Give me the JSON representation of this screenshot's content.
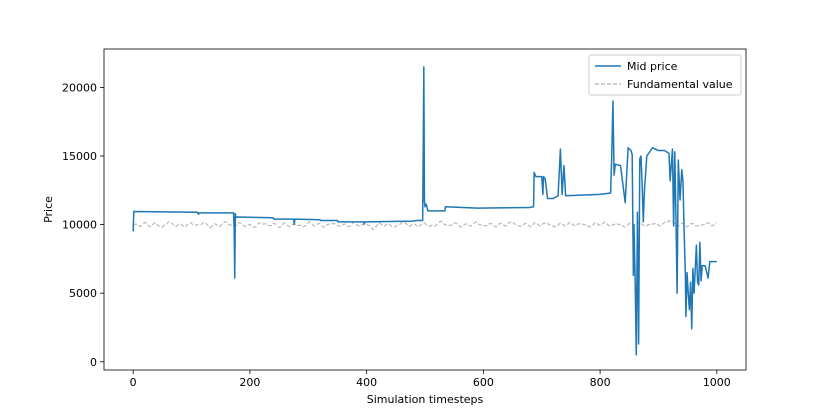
{
  "chart_data": {
    "type": "line",
    "title": "",
    "xlabel": "Simulation timesteps",
    "ylabel": "Price",
    "xlim": [
      -50,
      1050
    ],
    "ylim": [
      -600,
      22800
    ],
    "xticks": [
      0,
      200,
      400,
      600,
      800,
      1000
    ],
    "yticks": [
      0,
      5000,
      10000,
      15000,
      20000
    ],
    "grid": false,
    "legend": "top-right",
    "series": [
      {
        "name": "Mid price",
        "color": "#1f77b4",
        "style": "solid",
        "points": [
          [
            0,
            9500
          ],
          [
            1,
            10950
          ],
          [
            50,
            10930
          ],
          [
            110,
            10900
          ],
          [
            112,
            10750
          ],
          [
            113,
            10850
          ],
          [
            172,
            10850
          ],
          [
            173,
            9700
          ],
          [
            174,
            6100
          ],
          [
            175,
            10800
          ],
          [
            176,
            10500
          ],
          [
            177,
            10550
          ],
          [
            240,
            10500
          ],
          [
            241,
            10400
          ],
          [
            275,
            10400
          ],
          [
            276,
            10000
          ],
          [
            277,
            10400
          ],
          [
            320,
            10350
          ],
          [
            321,
            10300
          ],
          [
            350,
            10300
          ],
          [
            351,
            10200
          ],
          [
            395,
            10200
          ],
          [
            396,
            10050
          ],
          [
            397,
            10200
          ],
          [
            480,
            10250
          ],
          [
            485,
            10300
          ],
          [
            496,
            10300
          ],
          [
            498,
            21500
          ],
          [
            499,
            11700
          ],
          [
            500,
            11300
          ],
          [
            502,
            11500
          ],
          [
            505,
            11000
          ],
          [
            520,
            11000
          ],
          [
            534,
            11000
          ],
          [
            535,
            11300
          ],
          [
            590,
            11200
          ],
          [
            680,
            11250
          ],
          [
            686,
            11300
          ],
          [
            687,
            13800
          ],
          [
            690,
            13500
          ],
          [
            700,
            13500
          ],
          [
            702,
            12200
          ],
          [
            703,
            13500
          ],
          [
            706,
            13300
          ],
          [
            710,
            11900
          ],
          [
            720,
            11900
          ],
          [
            728,
            12100
          ],
          [
            732,
            15500
          ],
          [
            735,
            12200
          ],
          [
            738,
            14300
          ],
          [
            741,
            12100
          ],
          [
            800,
            12200
          ],
          [
            818,
            12300
          ],
          [
            820,
            15000
          ],
          [
            822,
            19000
          ],
          [
            824,
            13600
          ],
          [
            826,
            14400
          ],
          [
            835,
            14300
          ],
          [
            843,
            11600
          ],
          [
            848,
            15600
          ],
          [
            853,
            15400
          ],
          [
            855,
            15100
          ],
          [
            857,
            6300
          ],
          [
            858,
            10000
          ],
          [
            860,
            6100
          ],
          [
            862,
            500
          ],
          [
            864,
            10900
          ],
          [
            866,
            1300
          ],
          [
            868,
            14800
          ],
          [
            870,
            15000
          ],
          [
            872,
            13000
          ],
          [
            874,
            10200
          ],
          [
            876,
            12500
          ],
          [
            878,
            13700
          ],
          [
            880,
            15000
          ],
          [
            890,
            15600
          ],
          [
            900,
            15400
          ],
          [
            910,
            15400
          ],
          [
            918,
            15200
          ],
          [
            920,
            13200
          ],
          [
            924,
            15500
          ],
          [
            926,
            9900
          ],
          [
            928,
            15300
          ],
          [
            930,
            10500
          ],
          [
            932,
            5000
          ],
          [
            934,
            14700
          ],
          [
            937,
            11800
          ],
          [
            940,
            14000
          ],
          [
            942,
            13100
          ],
          [
            944,
            9500
          ],
          [
            946,
            6500
          ],
          [
            947,
            3300
          ],
          [
            949,
            6500
          ],
          [
            951,
            5000
          ],
          [
            953,
            3800
          ],
          [
            955,
            5800
          ],
          [
            957,
            2400
          ],
          [
            959,
            6800
          ],
          [
            961,
            5000
          ],
          [
            963,
            6700
          ],
          [
            965,
            8500
          ],
          [
            967,
            5800
          ],
          [
            969,
            5600
          ],
          [
            971,
            8700
          ],
          [
            973,
            5900
          ],
          [
            975,
            7000
          ],
          [
            980,
            7000
          ],
          [
            985,
            6100
          ],
          [
            988,
            7300
          ],
          [
            1000,
            7300
          ]
        ]
      },
      {
        "name": "Fundamental value",
        "color": "#bdbdbd",
        "style": "dashed",
        "mean": 10000,
        "noise_amplitude": 180,
        "points": [
          [
            0,
            10000
          ],
          [
            10,
            9900
          ],
          [
            20,
            10150
          ],
          [
            30,
            9850
          ],
          [
            40,
            10100
          ],
          [
            50,
            9800
          ],
          [
            60,
            10200
          ],
          [
            70,
            9900
          ],
          [
            80,
            10050
          ],
          [
            90,
            9850
          ],
          [
            100,
            10100
          ],
          [
            110,
            9950
          ],
          [
            120,
            10150
          ],
          [
            130,
            9800
          ],
          [
            140,
            10050
          ],
          [
            150,
            9900
          ],
          [
            160,
            10200
          ],
          [
            170,
            9850
          ],
          [
            180,
            10100
          ],
          [
            190,
            9900
          ],
          [
            200,
            10000
          ],
          [
            210,
            9850
          ],
          [
            220,
            10150
          ],
          [
            230,
            9950
          ],
          [
            240,
            10050
          ],
          [
            250,
            9800
          ],
          [
            260,
            10100
          ],
          [
            270,
            9900
          ],
          [
            280,
            10000
          ],
          [
            290,
            9850
          ],
          [
            300,
            10150
          ],
          [
            310,
            9900
          ],
          [
            320,
            10050
          ],
          [
            330,
            9850
          ],
          [
            340,
            10100
          ],
          [
            350,
            9950
          ],
          [
            360,
            10000
          ],
          [
            370,
            9850
          ],
          [
            380,
            10150
          ],
          [
            390,
            9900
          ],
          [
            400,
            10050
          ],
          [
            410,
            9650
          ],
          [
            420,
            10100
          ],
          [
            430,
            9900
          ],
          [
            440,
            10000
          ],
          [
            450,
            9850
          ],
          [
            460,
            10150
          ],
          [
            470,
            9950
          ],
          [
            480,
            10050
          ],
          [
            490,
            9850
          ],
          [
            500,
            10100
          ],
          [
            510,
            9900
          ],
          [
            520,
            10000
          ],
          [
            530,
            10200
          ],
          [
            540,
            9900
          ],
          [
            550,
            10100
          ],
          [
            560,
            9850
          ],
          [
            570,
            10050
          ],
          [
            580,
            9950
          ],
          [
            590,
            10150
          ],
          [
            600,
            9900
          ],
          [
            610,
            10050
          ],
          [
            620,
            9850
          ],
          [
            630,
            10100
          ],
          [
            640,
            9950
          ],
          [
            650,
            10200
          ],
          [
            660,
            9900
          ],
          [
            670,
            10050
          ],
          [
            680,
            9850
          ],
          [
            690,
            10150
          ],
          [
            700,
            9950
          ],
          [
            710,
            10100
          ],
          [
            720,
            9850
          ],
          [
            730,
            10050
          ],
          [
            740,
            9900
          ],
          [
            750,
            10150
          ],
          [
            760,
            9950
          ],
          [
            770,
            10050
          ],
          [
            780,
            9850
          ],
          [
            790,
            10100
          ],
          [
            800,
            9950
          ],
          [
            810,
            10150
          ],
          [
            820,
            9900
          ],
          [
            830,
            10050
          ],
          [
            840,
            9850
          ],
          [
            850,
            10100
          ],
          [
            860,
            9950
          ],
          [
            870,
            10150
          ],
          [
            880,
            9900
          ],
          [
            890,
            10050
          ],
          [
            900,
            9950
          ],
          [
            910,
            10150
          ],
          [
            920,
            10300
          ],
          [
            930,
            9900
          ],
          [
            940,
            10100
          ],
          [
            950,
            9850
          ],
          [
            960,
            10050
          ],
          [
            970,
            9900
          ],
          [
            980,
            10100
          ],
          [
            990,
            9950
          ],
          [
            1000,
            10150
          ]
        ]
      }
    ]
  }
}
